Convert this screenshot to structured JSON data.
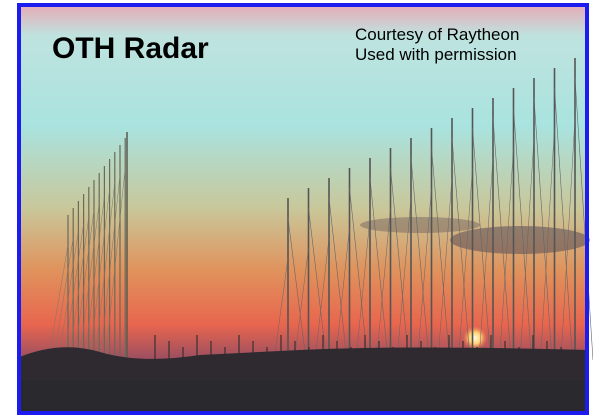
{
  "title": "OTH Radar",
  "credit": [
    "Courtesy of Raytheon",
    "Used with permission"
  ]
}
